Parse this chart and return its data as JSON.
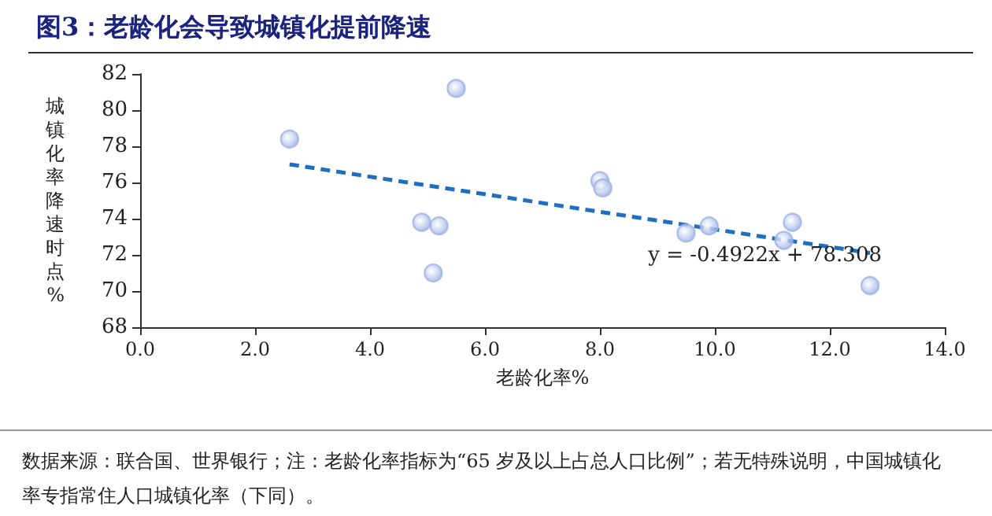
{
  "chart_data": {
    "type": "scatter",
    "title": "图3：老龄化会导致城镇化提前降速",
    "xlabel": "老龄化率%",
    "ylabel": "城镇化率降速时点%",
    "series": [
      {
        "color": "#9db3e6",
        "x": [
          2.6,
          5.5,
          4.9,
          5.2,
          5.1,
          8.0,
          8.05,
          9.5,
          9.9,
          11.2,
          11.35,
          12.7
        ],
        "values": [
          78.4,
          81.2,
          73.8,
          73.6,
          71.0,
          76.1,
          75.7,
          73.2,
          73.6,
          72.8,
          73.8,
          70.3
        ]
      },
      {
        "type": "line",
        "color": "#1f6fc0",
        "line_style": "dashed",
        "marker": "none",
        "x": [
          2.6,
          12.7
        ],
        "values": [
          77.0,
          72.1
        ]
      }
    ],
    "marker": "circle",
    "xlim": [
      0,
      14
    ],
    "xticks": [
      {
        "value": 0,
        "label": "0.0"
      },
      {
        "value": 2,
        "label": "2.0"
      },
      {
        "value": 4,
        "label": "4.0"
      },
      {
        "value": 6,
        "label": "6.0"
      },
      {
        "value": 8,
        "label": "8.0"
      },
      {
        "value": 10,
        "label": "10.0"
      },
      {
        "value": 12,
        "label": "12.0"
      },
      {
        "value": 14,
        "label": "14.0"
      }
    ],
    "ylim": [
      68,
      82
    ],
    "yticks": [
      68,
      70,
      72,
      74,
      76,
      78,
      80,
      82
    ],
    "grid": false,
    "annotations": [
      "y = -0.4922x + 78.308",
      "数据来源：联合国、世界银行；注：老龄化率指标为“65 岁及以上占总人口比例”；若无特殊说明，中国城镇化率专指常住人口城镇化率（下同）。"
    ]
  }
}
